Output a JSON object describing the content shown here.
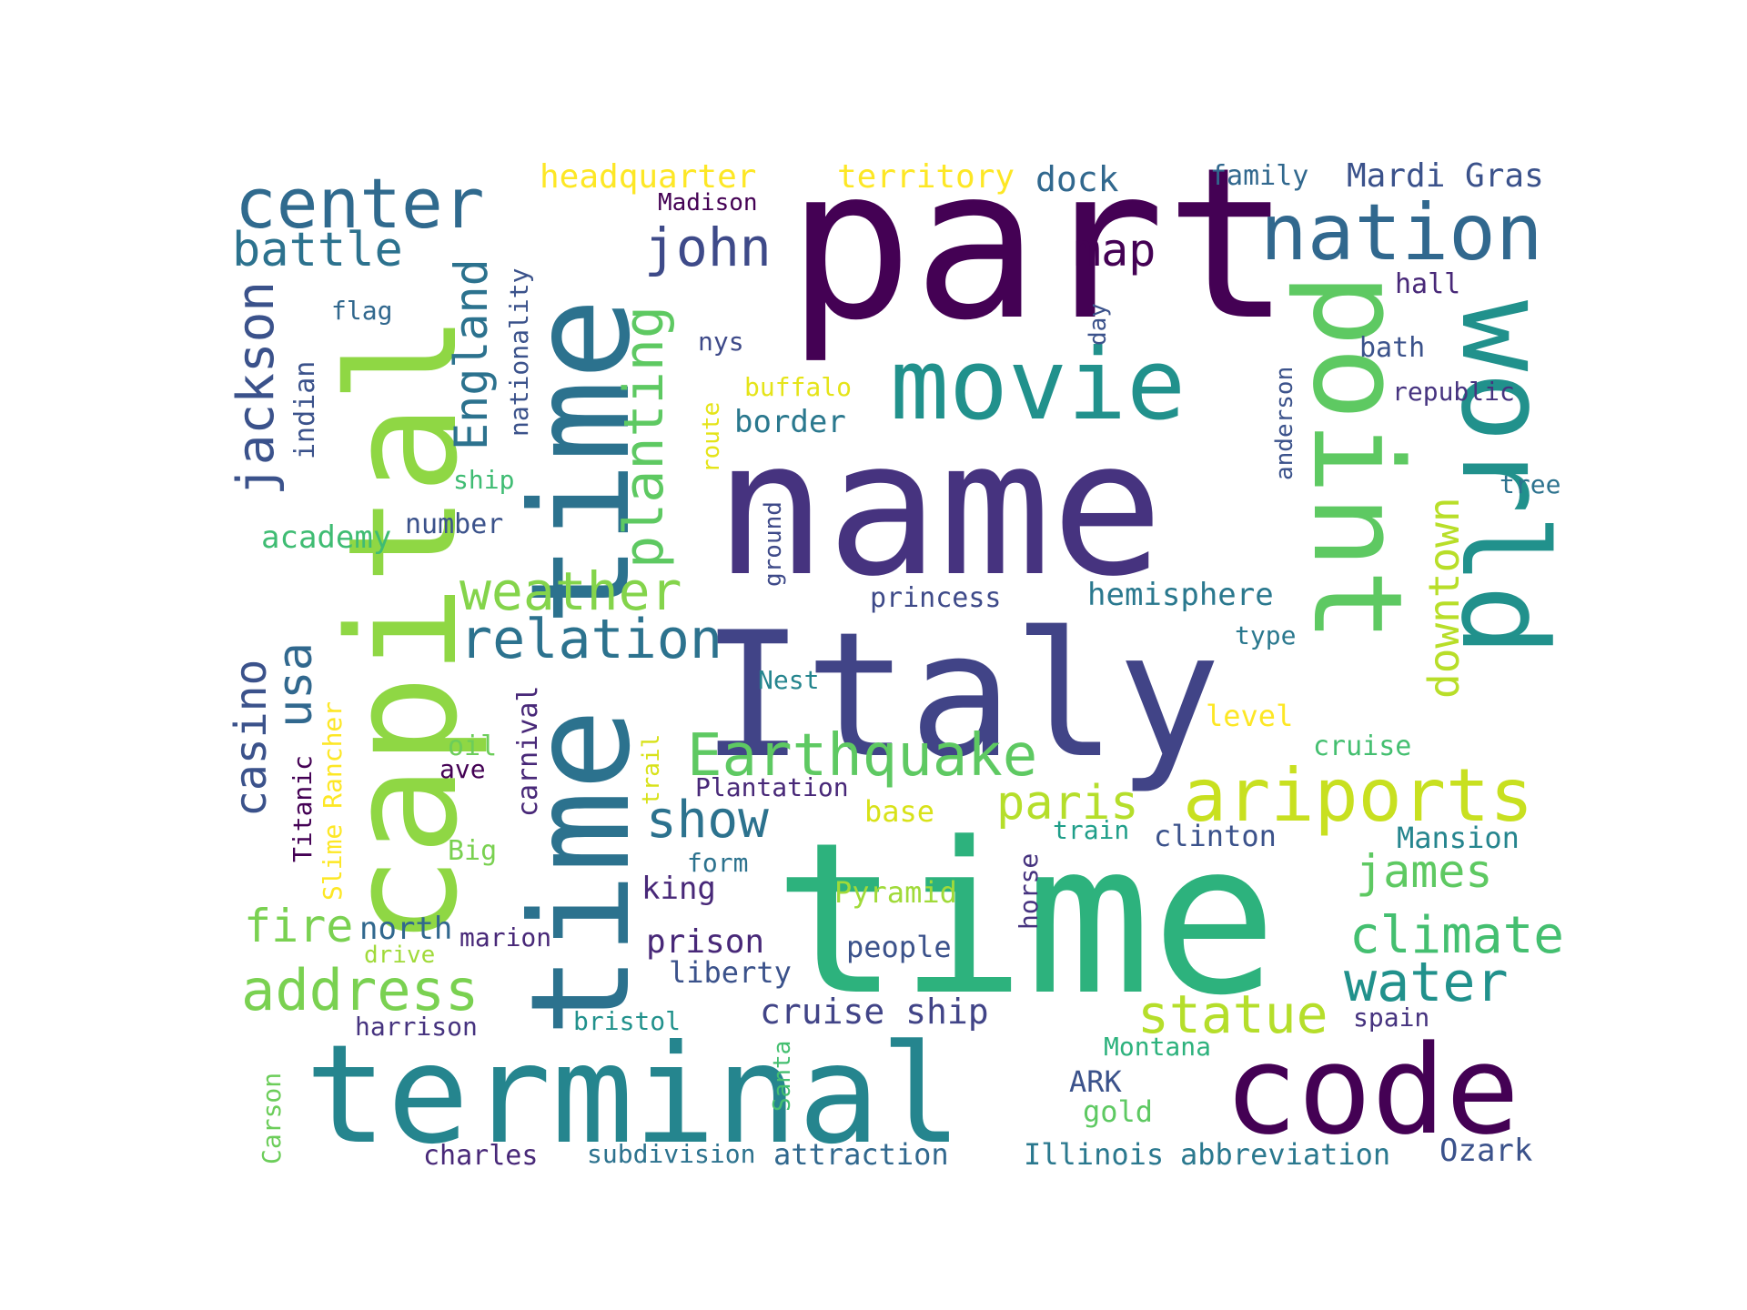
{
  "words": [
    {
      "text": "part",
      "color": "#440154"
    },
    {
      "text": "name",
      "color": "#46337f"
    },
    {
      "text": "time",
      "color": "#2db27d"
    },
    {
      "text": "Italy",
      "color": "#414487"
    },
    {
      "text": "terminal",
      "color": "#25858e"
    },
    {
      "text": "capital",
      "color": "#8fd744"
    },
    {
      "text": "time time",
      "color": "#2c728e"
    },
    {
      "text": "point",
      "color": "#5ec962"
    },
    {
      "text": "world",
      "color": "#21918c"
    },
    {
      "text": "code",
      "color": "#440154"
    },
    {
      "text": "movie",
      "color": "#21918c"
    },
    {
      "text": "nation",
      "color": "#31688e"
    },
    {
      "text": "center",
      "color": "#306a8e"
    },
    {
      "text": "ariports",
      "color": "#c8e020"
    },
    {
      "text": "Earthquake",
      "color": "#5ec962"
    },
    {
      "text": "relation",
      "color": "#2c728e"
    },
    {
      "text": "weather",
      "color": "#84d44b"
    },
    {
      "text": "address",
      "color": "#7ad151"
    },
    {
      "text": "planting",
      "color": "#5ec962"
    },
    {
      "text": "jackson",
      "color": "#3b528b"
    },
    {
      "text": "battle",
      "color": "#2c728e"
    },
    {
      "text": "john",
      "color": "#3e4a89"
    },
    {
      "text": "England",
      "color": "#2c728e"
    },
    {
      "text": "climate",
      "color": "#44bf70"
    },
    {
      "text": "statue",
      "color": "#b5de2b"
    },
    {
      "text": "water",
      "color": "#21918c"
    },
    {
      "text": "show",
      "color": "#2c728e"
    },
    {
      "text": "james",
      "color": "#5ec962"
    },
    {
      "text": "paris",
      "color": "#b5de2b"
    },
    {
      "text": "downtown",
      "color": "#b8de29"
    },
    {
      "text": "map",
      "color": "#440154"
    },
    {
      "text": "usa",
      "color": "#31688e"
    },
    {
      "text": "casino",
      "color": "#3b528b"
    },
    {
      "text": "fire",
      "color": "#7ad151"
    },
    {
      "text": "cruise ship",
      "color": "#414487"
    },
    {
      "text": "Mardi Gras",
      "color": "#3b528b"
    },
    {
      "text": "headquarter",
      "color": "#fde725"
    },
    {
      "text": "territory",
      "color": "#fde725"
    },
    {
      "text": "dock",
      "color": "#31688e"
    },
    {
      "text": "family",
      "color": "#31688e"
    },
    {
      "text": "hemisphere",
      "color": "#2a788e"
    },
    {
      "text": "border",
      "color": "#2a788e"
    },
    {
      "text": "academy",
      "color": "#3fbc73"
    },
    {
      "text": "princess",
      "color": "#3e4a89"
    },
    {
      "text": "north",
      "color": "#31688e"
    },
    {
      "text": "king",
      "color": "#482878"
    },
    {
      "text": "prison",
      "color": "#482878"
    },
    {
      "text": "liberty",
      "color": "#3b528b"
    },
    {
      "text": "people",
      "color": "#3b528b"
    },
    {
      "text": "clinton",
      "color": "#3b528b"
    },
    {
      "text": "Mansion",
      "color": "#25858e"
    },
    {
      "text": "Pyramid",
      "color": "#a0da39"
    },
    {
      "text": "base",
      "color": "#d8e219"
    },
    {
      "text": "Plantation",
      "color": "#482878"
    },
    {
      "text": "Ozark",
      "color": "#3b528b"
    },
    {
      "text": "abbreviation",
      "color": "#2a788e"
    },
    {
      "text": "Illinois",
      "color": "#2a788e"
    },
    {
      "text": "attraction",
      "color": "#31688e"
    },
    {
      "text": "subdivision",
      "color": "#2c728e"
    },
    {
      "text": "charles",
      "color": "#482878"
    },
    {
      "text": "gold",
      "color": "#5ec962"
    },
    {
      "text": "ARK",
      "color": "#3b528b"
    },
    {
      "text": "Montana",
      "color": "#2db27d"
    },
    {
      "text": "spain",
      "color": "#46337f"
    },
    {
      "text": "bristol",
      "color": "#21918c"
    },
    {
      "text": "harrison",
      "color": "#46337f"
    },
    {
      "text": "drive",
      "color": "#a0da39"
    },
    {
      "text": "marion",
      "color": "#482878"
    },
    {
      "text": "Big",
      "color": "#7ad151"
    },
    {
      "text": "ave",
      "color": "#440154"
    },
    {
      "text": "oil",
      "color": "#6ccd5a"
    },
    {
      "text": "number",
      "color": "#3b528b"
    },
    {
      "text": "ship",
      "color": "#3fbc73"
    },
    {
      "text": "flag",
      "color": "#31688e"
    },
    {
      "text": "buffalo",
      "color": "#e5e419"
    },
    {
      "text": "nys",
      "color": "#3e4a89"
    },
    {
      "text": "Madison",
      "color": "#440154"
    },
    {
      "text": "hall",
      "color": "#482878"
    },
    {
      "text": "bath",
      "color": "#3b528b"
    },
    {
      "text": "republic",
      "color": "#46337f"
    },
    {
      "text": "tree",
      "color": "#2c728e"
    },
    {
      "text": "type",
      "color": "#2a788e"
    },
    {
      "text": "level",
      "color": "#fde725"
    },
    {
      "text": "cruise",
      "color": "#44bf70"
    },
    {
      "text": "Nest",
      "color": "#25858e"
    },
    {
      "text": "train",
      "color": "#1f9e89"
    },
    {
      "text": "form",
      "color": "#2c728e"
    },
    {
      "text": "nationality",
      "color": "#3b528b"
    },
    {
      "text": "indian",
      "color": "#3b528b"
    },
    {
      "text": "route",
      "color": "#e5e419"
    },
    {
      "text": "ground",
      "color": "#3e4a89"
    },
    {
      "text": "day",
      "color": "#3b528b"
    },
    {
      "text": "anderson",
      "color": "#3b528b"
    },
    {
      "text": "carnival",
      "color": "#482878"
    },
    {
      "text": "trail",
      "color": "#d8e219"
    },
    {
      "text": "Slime Rancher",
      "color": "#fde725"
    },
    {
      "text": "Titanic",
      "color": "#440154"
    },
    {
      "text": "horse",
      "color": "#46337f"
    },
    {
      "text": "Santa",
      "color": "#44bf70"
    },
    {
      "text": "Carson",
      "color": "#6ccd5a"
    }
  ]
}
